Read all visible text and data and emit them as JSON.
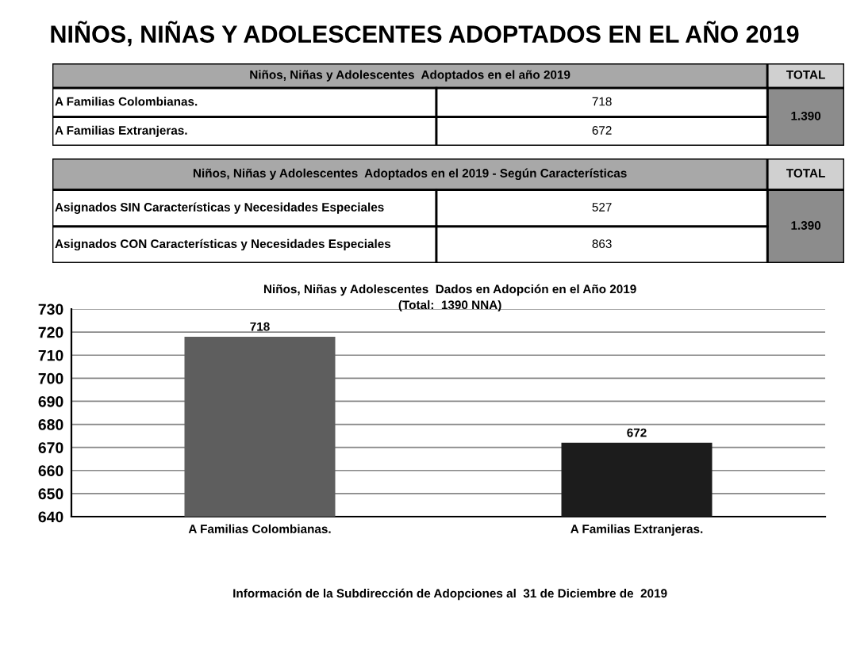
{
  "chart_data": [
    {
      "type": "other",
      "title": "NIÑOS, NIÑAS Y ADOLESCENTES ADOPTADOS EN EL AÑO 2019",
      "subtitle": "Niños, Niñas y Adolescentes  Adoptados en el año 2019",
      "annotations": [
        "TOTAL"
      ],
      "categories": [
        "A Familias Colombianas.",
        "A Familias Extranjeras."
      ],
      "values": [
        718,
        672
      ],
      "totals": [
        "1.390"
      ],
      "data_labels": true
    },
    {
      "type": "other",
      "subtitle": "Niños, Niñas y Adolescentes  Adoptados en el 2019 - Según Características",
      "annotations": [
        "TOTAL"
      ],
      "categories": [
        "Asignados SIN Características y Necesidades Especiales",
        "Asignados CON Características y Necesidades Especiales"
      ],
      "values": [
        527,
        863
      ],
      "totals": [
        "1.390"
      ],
      "data_labels": true
    },
    {
      "type": "bar",
      "title": "Niños, Niñas y Adolescentes  Dados en Adopción en el Año 2019",
      "subtitle": "(Total:  1390 NNA)",
      "categories": [
        "A Familias Colombianas.",
        "A Familias Extranjeras."
      ],
      "values": [
        718,
        672
      ],
      "colors": [
        "#5e5e5e",
        "#1c1c1c"
      ],
      "ylim": [
        640,
        730
      ],
      "yticks": [
        640,
        650,
        660,
        670,
        680,
        690,
        700,
        710,
        720,
        730
      ],
      "grid": "y",
      "data_labels": true,
      "annotations": [
        "Información de la Subdirección de Adopciones al  31 de Diciembre de  2019"
      ]
    }
  ]
}
